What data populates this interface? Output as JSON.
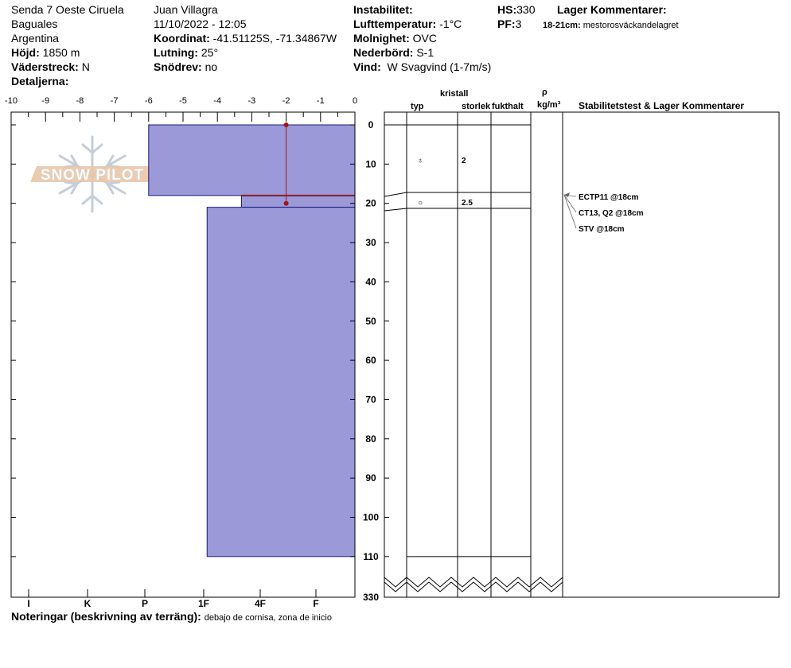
{
  "header": {
    "location_line1": "Senda 7 Oeste Ciruela",
    "location_line2": "Baguales",
    "location_line3": "Argentina",
    "elevation_label": "Höjd:",
    "elevation_value": "1850 m",
    "aspect_label": "Väderstreck:",
    "aspect_value": "N",
    "details_label": "Detaljerna:",
    "observer": "Juan Villagra",
    "datetime": "11/10/2022 - 12:05",
    "coord_label": "Koordinat:",
    "coord_value": "-41.51125S, -71.34867W",
    "slope_label": "Lutning:",
    "slope_value": "25°",
    "drift_label": "Snödrev:",
    "drift_value": "no",
    "instability_label": "Instabilitet:",
    "airtemp_label": "Lufttemperatur:",
    "airtemp_value": "-1°C",
    "sky_label": "Molnighet:",
    "sky_value": "OVC",
    "precip_label": "Nederbörd:",
    "precip_value": "S-1",
    "wind_label": "Vind:",
    "wind_value": "W Svagvind (1-7m/s)",
    "hs_label": "HS:",
    "hs_value": "330",
    "pf_label": "PF:",
    "pf_value": "3",
    "layer_comments_label": "Lager Kommentarer:",
    "layer_comment_range": "18-21cm:",
    "layer_comment_text": "mestorosväckandelagret"
  },
  "logo_text": "SNOW PILOT",
  "columns": {
    "type": "typ",
    "crystal": "kristall",
    "size": "storlek",
    "moisture": "fukthalt",
    "rho": "ρ",
    "density_unit": "kg/m³",
    "stability": "Stabilitetstest & Lager Kommentarer"
  },
  "footer": {
    "notes_label": "Noteringar (beskrivning av terräng):",
    "notes_value": "debajo de cornisa, zona de inicio"
  },
  "stability_tests": [
    "ECTP11 @18cm",
    "CT13, Q2 @18cm",
    "STV @18cm"
  ],
  "colors": {
    "layer_fill": "#9b99d8",
    "layer_stroke": "#1a1a7a",
    "temp_line": "#aa1111"
  },
  "chart_data": {
    "type": "snow_profile",
    "temperature_axis": {
      "min": -10,
      "max": 0,
      "ticks": [
        -10,
        -9,
        -8,
        -7,
        -6,
        -5,
        -4,
        -3,
        -2,
        -1,
        0
      ]
    },
    "depth_axis": {
      "ticks": [
        0,
        10,
        20,
        30,
        40,
        50,
        60,
        70,
        80,
        90,
        100,
        110
      ],
      "bottom_label": "330"
    },
    "hardness_ticks": [
      "I",
      "K",
      "P",
      "1F",
      "4F",
      "F"
    ],
    "layers": [
      {
        "top": 0,
        "bottom": 18,
        "hardness_temp_equiv": -6.0
      },
      {
        "top": 18,
        "bottom": 21,
        "hardness_temp_equiv": -3.3
      },
      {
        "top": 21,
        "bottom": 110,
        "hardness_temp_equiv": -4.3
      }
    ],
    "temperature_profile": [
      {
        "depth": 0,
        "temp": -2
      },
      {
        "depth": 20,
        "temp": -2
      }
    ],
    "weak_layer_depth": 18,
    "grain_rows": [
      {
        "depth": 9,
        "symbol": "♁",
        "size": "2"
      },
      {
        "depth": 20,
        "symbol": "○",
        "size": "2.5"
      }
    ],
    "right_lines": [
      0,
      18,
      21,
      110
    ]
  }
}
